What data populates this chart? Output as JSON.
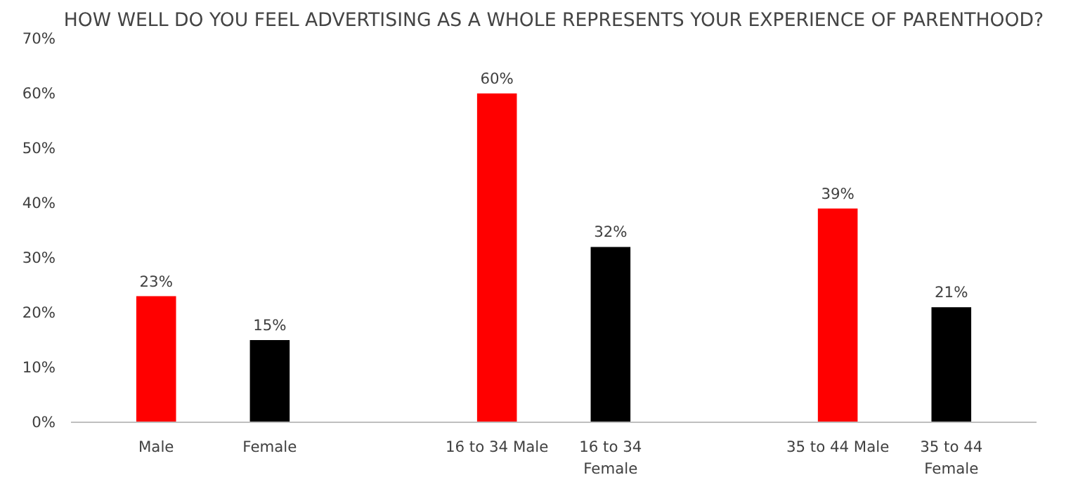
{
  "chart_data": {
    "type": "bar",
    "title": "HOW WELL DO YOU FEEL ADVERTISING AS A WHOLE REPRESENTS YOUR EXPERIENCE OF PARENTHOOD?",
    "categories": [
      "Male",
      "Female",
      null,
      "16 to 34 Male",
      "16 to 34 Female",
      null,
      "35 to 44 Male",
      "35 to 44 Female"
    ],
    "values": [
      23,
      15,
      null,
      60,
      32,
      null,
      39,
      21
    ],
    "colors": [
      "#ff0000",
      "#000000",
      "#000000",
      "#ff0000",
      "#000000",
      "#000000",
      "#ff0000",
      "#000000"
    ],
    "value_labels": [
      "23%",
      "15%",
      null,
      "60%",
      "32%",
      null,
      "39%",
      "21%"
    ],
    "ylim": [
      0,
      70
    ],
    "yticks": [
      {
        "value": 0,
        "label": "0%"
      },
      {
        "value": 10,
        "label": "10%"
      },
      {
        "value": 20,
        "label": "20%"
      },
      {
        "value": 30,
        "label": "30%"
      },
      {
        "value": 40,
        "label": "40%"
      },
      {
        "value": 50,
        "label": "50%"
      },
      {
        "value": 60,
        "label": "60%"
      },
      {
        "value": 70,
        "label": "70%"
      }
    ],
    "grid": false
  }
}
